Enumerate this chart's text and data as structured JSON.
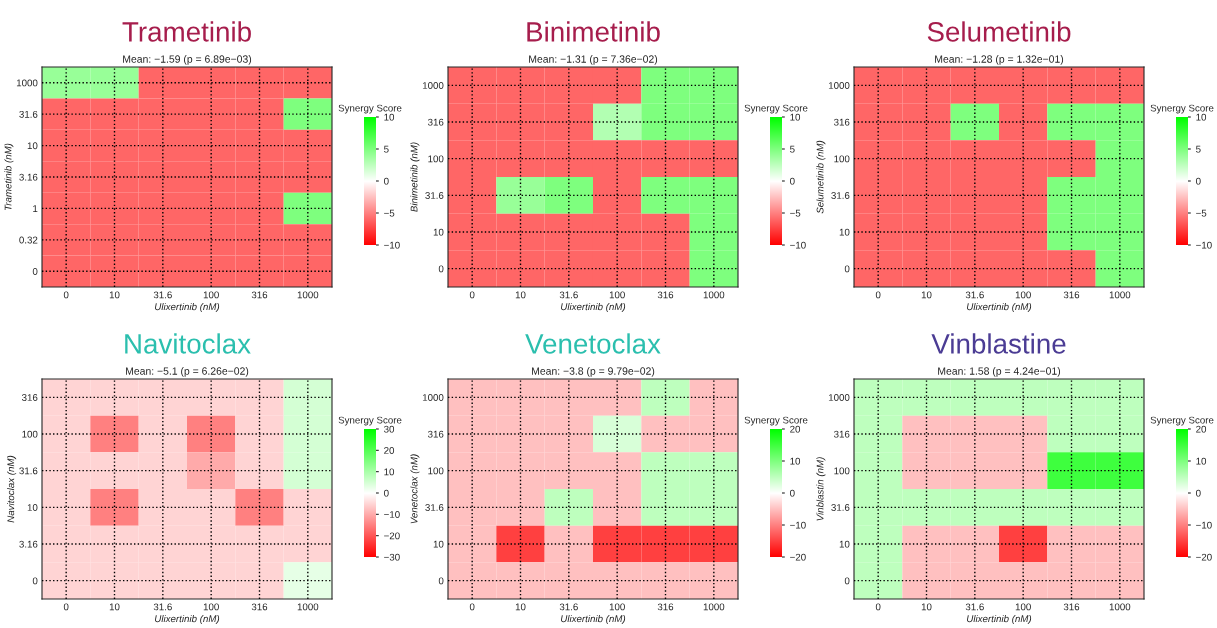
{
  "chart_data": [
    {
      "type": "heatmap",
      "title": "Trametinib",
      "subtitle": "Mean: −1.59 (p = 6.89e−03)",
      "xlabel": "Ulixertinib (nM)",
      "ylabel": "Trametinib (nM)",
      "clabel": "Synergy Score",
      "grid": true,
      "clim": [
        -10,
        10
      ],
      "cticks": [
        -10,
        -5,
        0,
        5,
        10
      ],
      "categories": [
        "0",
        "10",
        "31.6",
        "100",
        "316",
        "1000"
      ],
      "y_categories": [
        "1000",
        "31.6",
        "10",
        "3.16",
        "1",
        "0.32",
        "0"
      ],
      "cells": [
        [
          4,
          4,
          -6,
          -6,
          -6,
          -6
        ],
        [
          -6,
          -6,
          -6,
          -6,
          -6,
          5
        ],
        [
          -6,
          -6,
          -6,
          -6,
          -6,
          -6
        ],
        [
          -6,
          -6,
          -6,
          -6,
          -6,
          -6
        ],
        [
          -6,
          -6,
          -6,
          -6,
          -6,
          5
        ],
        [
          -6,
          -6,
          -6,
          -6,
          -6,
          -6
        ],
        [
          -6,
          -6,
          -6,
          -6,
          -6,
          -6
        ]
      ]
    },
    {
      "type": "heatmap",
      "title": "Binimetinib",
      "subtitle": "Mean: −1.31 (p = 7.36e−02)",
      "xlabel": "Ulixertinib (nM)",
      "ylabel": "Binimetinib (nM)",
      "clabel": "Synergy Score",
      "grid": true,
      "clim": [
        -10,
        10
      ],
      "cticks": [
        -10,
        -5,
        0,
        5,
        10
      ],
      "categories": [
        "0",
        "10",
        "31.6",
        "100",
        "316",
        "1000"
      ],
      "y_categories": [
        "1000",
        "316",
        "100",
        "31.6",
        "10",
        "0"
      ],
      "cells": [
        [
          -6,
          -6,
          -6,
          -6,
          5,
          5
        ],
        [
          -6,
          -6,
          -6,
          3,
          5,
          5
        ],
        [
          -6,
          -6,
          -6,
          -6,
          -6,
          -6
        ],
        [
          -6,
          4,
          5,
          -6,
          5,
          5
        ],
        [
          -6,
          -6,
          -6,
          -6,
          -6,
          5
        ],
        [
          -6,
          -6,
          -6,
          -6,
          -6,
          5
        ]
      ]
    },
    {
      "type": "heatmap",
      "title": "Selumetinib",
      "subtitle": "Mean: −1.28 (p = 1.32e−01)",
      "xlabel": "Ulixertinib (nM)",
      "ylabel": "Selumetinib (nM)",
      "clabel": "Synergy Score",
      "grid": true,
      "clim": [
        -10,
        10
      ],
      "cticks": [
        -10,
        -5,
        0,
        5,
        10
      ],
      "categories": [
        "0",
        "10",
        "31.6",
        "100",
        "316",
        "1000"
      ],
      "y_categories": [
        "1000",
        "316",
        "100",
        "31.6",
        "10",
        "0"
      ],
      "cells": [
        [
          -6,
          -6,
          -6,
          -6,
          -6,
          -6
        ],
        [
          -6,
          -6,
          5,
          -6,
          5,
          5
        ],
        [
          -6,
          -6,
          -6,
          -6,
          -6,
          5
        ],
        [
          -6,
          -6,
          -6,
          -6,
          5,
          5
        ],
        [
          -6,
          -6,
          -6,
          -6,
          5,
          5
        ],
        [
          -6,
          -6,
          -6,
          -6,
          -6,
          5
        ]
      ]
    },
    {
      "type": "heatmap",
      "title": "Navitoclax",
      "subtitle": "Mean: −5.1 (p = 6.26e−02)",
      "xlabel": "Ulixertinib (nM)",
      "ylabel": "Navitoclax (nM)",
      "clabel": "Synergy Score",
      "grid": true,
      "clim": [
        -30,
        30
      ],
      "cticks": [
        -30,
        -20,
        -10,
        0,
        10,
        20,
        30
      ],
      "categories": [
        "0",
        "10",
        "31.6",
        "100",
        "316",
        "1000"
      ],
      "y_categories": [
        "316",
        "100",
        "31.6",
        "10",
        "3.16",
        "0"
      ],
      "cells": [
        [
          -5,
          -5,
          -5,
          -5,
          -5,
          5
        ],
        [
          -5,
          -15,
          -5,
          -15,
          -5,
          5
        ],
        [
          -5,
          -5,
          -5,
          -10,
          -5,
          5
        ],
        [
          -5,
          -15,
          -5,
          -5,
          -15,
          -5
        ],
        [
          -5,
          -5,
          -5,
          -5,
          -5,
          -5
        ],
        [
          -5,
          -5,
          -5,
          -5,
          -5,
          3
        ]
      ]
    },
    {
      "type": "heatmap",
      "title": "Venetoclax",
      "subtitle": "Mean: −3.8 (p = 9.79e−02)",
      "xlabel": "Ulixertinib (nM)",
      "ylabel": "Venetoclax (nM)",
      "clabel": "Synergy Score",
      "grid": true,
      "clim": [
        -20,
        20
      ],
      "cticks": [
        -20,
        -10,
        0,
        10,
        20
      ],
      "categories": [
        "0",
        "10",
        "31.6",
        "100",
        "316",
        "1000"
      ],
      "y_categories": [
        "1000",
        "316",
        "100",
        "31.6",
        "10",
        "0"
      ],
      "cells": [
        [
          -5,
          -5,
          -5,
          -5,
          5,
          -5
        ],
        [
          -5,
          -5,
          -5,
          3,
          -5,
          -5
        ],
        [
          -5,
          -5,
          -5,
          -5,
          5,
          5
        ],
        [
          -5,
          -5,
          5,
          -5,
          5,
          5
        ],
        [
          -5,
          -15,
          -5,
          -15,
          -15,
          -15
        ],
        [
          -5,
          -5,
          -5,
          -5,
          -5,
          -5
        ]
      ]
    },
    {
      "type": "heatmap",
      "title": "Vinblastine",
      "subtitle": "Mean: 1.58 (p = 4.24e−01)",
      "xlabel": "Ulixertinib (nM)",
      "ylabel": "Vinblastin (nM)",
      "clabel": "Synergy Score",
      "grid": true,
      "clim": [
        -20,
        20
      ],
      "cticks": [
        -20,
        -10,
        0,
        10,
        20
      ],
      "categories": [
        "0",
        "10",
        "31.6",
        "100",
        "316",
        "1000"
      ],
      "y_categories": [
        "1000",
        "316",
        "100",
        "31.6",
        "10",
        "0"
      ],
      "cells": [
        [
          5,
          5,
          5,
          5,
          5,
          5
        ],
        [
          5,
          -5,
          -5,
          -5,
          5,
          5
        ],
        [
          5,
          -5,
          -5,
          -5,
          15,
          15
        ],
        [
          5,
          5,
          5,
          5,
          5,
          5
        ],
        [
          5,
          -5,
          -5,
          -15,
          -5,
          -5
        ],
        [
          5,
          -5,
          -5,
          -5,
          -5,
          -5
        ]
      ]
    }
  ]
}
